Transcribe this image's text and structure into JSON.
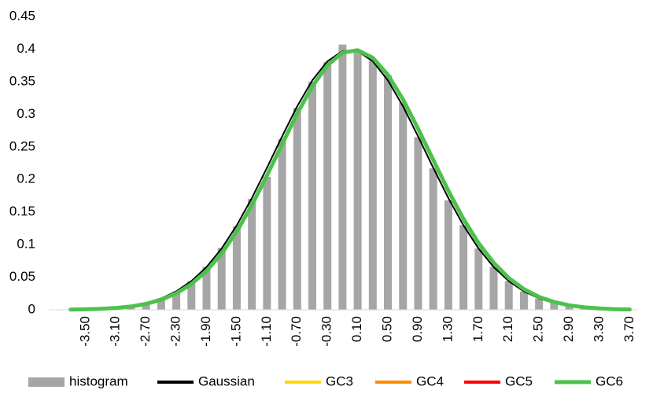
{
  "chart_data": {
    "type": "combo",
    "categories": [
      null,
      "-3.50",
      null,
      "-3.10",
      null,
      "-2.70",
      null,
      "-2.30",
      null,
      "-1.90",
      null,
      "-1.50",
      null,
      "-1.10",
      null,
      "-0.70",
      null,
      "-0.30",
      null,
      "0.10",
      null,
      "0.50",
      null,
      "0.90",
      null,
      "1.30",
      null,
      "1.70",
      null,
      "2.10",
      null,
      "2.50",
      null,
      "2.90",
      null,
      "3.30",
      null,
      "3.70"
    ],
    "ylim": [
      0,
      0.45
    ],
    "yticks": [
      0,
      0.05,
      0.1,
      0.15,
      0.2,
      0.25,
      0.3,
      0.35,
      0.4,
      0.45
    ],
    "grid": false,
    "legend": "bottom",
    "series": [
      {
        "name": "histogram",
        "type": "bar",
        "color": "#a6a6a6",
        "values": [
          0.0004,
          0.0009,
          0.0017,
          0.0033,
          0.006,
          0.0104,
          0.0175,
          0.028,
          0.044,
          0.066,
          0.095,
          0.128,
          0.17,
          0.204,
          0.262,
          0.31,
          0.35,
          0.38,
          0.407,
          0.397,
          0.382,
          0.36,
          0.318,
          0.265,
          0.217,
          0.168,
          0.13,
          0.094,
          0.066,
          0.044,
          0.028,
          0.017,
          0.011,
          0.006,
          0.003,
          0.0017,
          0.0009,
          0.0004
        ]
      },
      {
        "name": "Gaussian",
        "type": "line",
        "color": "#000000",
        "width": 2,
        "values": [
          0.0004,
          0.0009,
          0.0017,
          0.0033,
          0.006,
          0.0104,
          0.0175,
          0.0283,
          0.044,
          0.0656,
          0.094,
          0.1295,
          0.1714,
          0.2179,
          0.2661,
          0.3123,
          0.3521,
          0.3814,
          0.397,
          0.397,
          0.3814,
          0.3521,
          0.3123,
          0.2661,
          0.2179,
          0.1714,
          0.1295,
          0.094,
          0.0656,
          0.044,
          0.0283,
          0.0175,
          0.0104,
          0.006,
          0.0033,
          0.0017,
          0.0009,
          0.0004
        ]
      },
      {
        "name": "GC3",
        "type": "line",
        "color": "#ffd700",
        "width": 3,
        "values": [
          0.00035,
          0.00073,
          0.00146,
          0.0028,
          0.0051,
          0.0091,
          0.0154,
          0.0252,
          0.0396,
          0.0596,
          0.0863,
          0.12,
          0.1604,
          0.2059,
          0.2541,
          0.3011,
          0.3429,
          0.3752,
          0.3945,
          0.3984,
          0.3867,
          0.3605,
          0.323,
          0.278,
          0.2299,
          0.1826,
          0.1394,
          0.1023,
          0.0721,
          0.0488,
          0.0317,
          0.0198,
          0.0119,
          0.0069,
          0.0038,
          0.002,
          0.001,
          0.0005
        ]
      },
      {
        "name": "GC4",
        "type": "line",
        "color": "#ff8c00",
        "width": 3,
        "values": [
          0.00035,
          0.00073,
          0.00146,
          0.0028,
          0.0051,
          0.0091,
          0.0154,
          0.0252,
          0.0396,
          0.0596,
          0.0863,
          0.12,
          0.1604,
          0.2059,
          0.2541,
          0.3011,
          0.3429,
          0.3752,
          0.3945,
          0.3984,
          0.3867,
          0.3605,
          0.323,
          0.278,
          0.2299,
          0.1826,
          0.1394,
          0.1023,
          0.0721,
          0.0488,
          0.0317,
          0.0198,
          0.0119,
          0.0069,
          0.0038,
          0.002,
          0.001,
          0.0005
        ]
      },
      {
        "name": "GC5",
        "type": "line",
        "color": "#ff0000",
        "width": 3,
        "values": [
          0.00035,
          0.00073,
          0.00146,
          0.0028,
          0.0051,
          0.0091,
          0.0154,
          0.0252,
          0.0396,
          0.0596,
          0.0863,
          0.12,
          0.1604,
          0.2059,
          0.2541,
          0.3011,
          0.3429,
          0.3752,
          0.3945,
          0.3984,
          0.3867,
          0.3605,
          0.323,
          0.278,
          0.2299,
          0.1826,
          0.1394,
          0.1023,
          0.0721,
          0.0488,
          0.0317,
          0.0198,
          0.0119,
          0.0069,
          0.0038,
          0.002,
          0.001,
          0.0005
        ]
      },
      {
        "name": "GC6",
        "type": "line",
        "color": "#4cc24c",
        "width": 5,
        "values": [
          0.00035,
          0.00073,
          0.00146,
          0.0028,
          0.0051,
          0.0091,
          0.0154,
          0.0252,
          0.0396,
          0.0596,
          0.0863,
          0.12,
          0.1604,
          0.2059,
          0.2541,
          0.3011,
          0.3429,
          0.3752,
          0.3945,
          0.3984,
          0.3867,
          0.3605,
          0.323,
          0.278,
          0.2299,
          0.1826,
          0.1394,
          0.1023,
          0.0721,
          0.0488,
          0.0317,
          0.0198,
          0.0119,
          0.0069,
          0.0038,
          0.002,
          0.001,
          0.0005
        ]
      }
    ]
  }
}
